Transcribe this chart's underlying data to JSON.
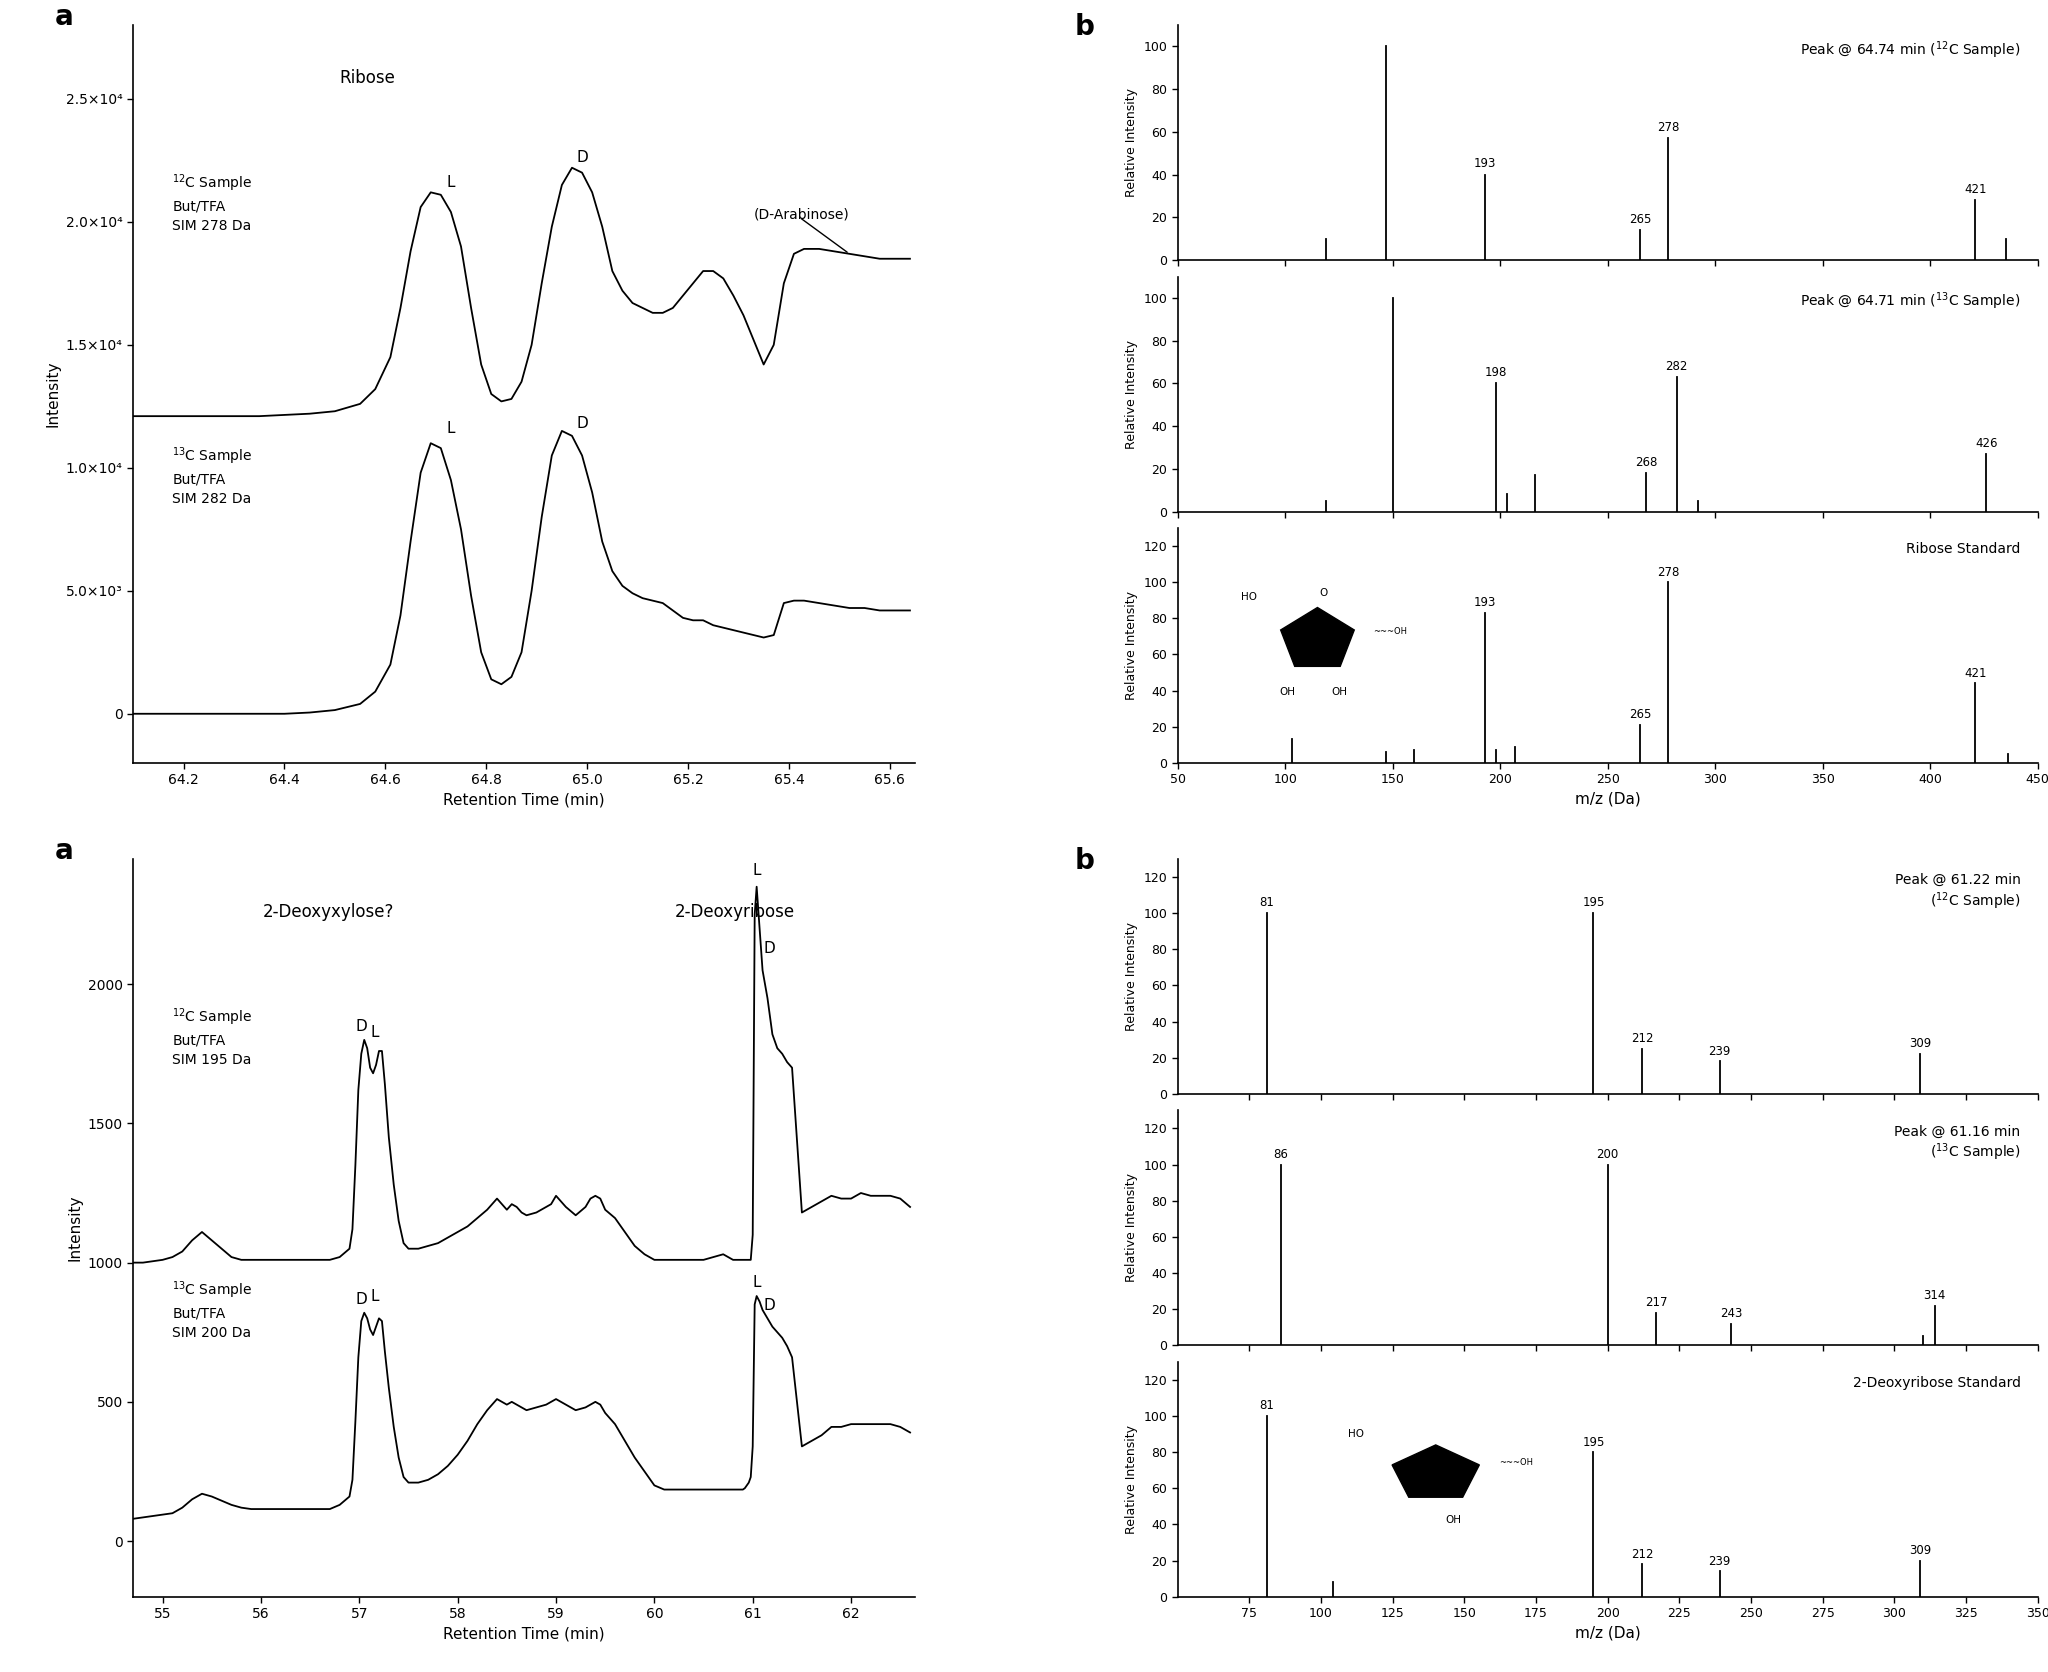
{
  "top_chrom": {
    "xlabel": "Retention Time (min)",
    "ylabel": "Intensity",
    "xlim": [
      64.1,
      65.65
    ],
    "ylim": [
      -2000,
      28000
    ],
    "yticks": [
      0,
      5000,
      10000,
      15000,
      20000,
      25000
    ],
    "ytick_labels": [
      "0",
      "5.0×10³",
      "1.0×10⁴",
      "1.5×10⁴",
      "2.0×10⁴",
      "2.5×10⁴"
    ],
    "xticks": [
      64.2,
      64.4,
      64.6,
      64.8,
      65.0,
      65.2,
      65.4,
      65.6
    ],
    "label_12C": "$^{12}$C Sample\nBut/TFA\nSIM 278 Da",
    "label_13C": "$^{13}$C Sample\nBut/TFA\nSIM 282 Da",
    "ribose_label": "Ribose",
    "arabinose_label": "(D-Arabinose)",
    "trace12C_x": [
      64.1,
      64.15,
      64.2,
      64.25,
      64.3,
      64.35,
      64.4,
      64.45,
      64.5,
      64.55,
      64.58,
      64.61,
      64.63,
      64.65,
      64.67,
      64.69,
      64.71,
      64.73,
      64.75,
      64.77,
      64.79,
      64.81,
      64.83,
      64.85,
      64.87,
      64.89,
      64.91,
      64.93,
      64.95,
      64.97,
      64.99,
      65.01,
      65.03,
      65.05,
      65.07,
      65.09,
      65.11,
      65.13,
      65.15,
      65.17,
      65.19,
      65.21,
      65.23,
      65.25,
      65.27,
      65.29,
      65.31,
      65.33,
      65.35,
      65.37,
      65.39,
      65.41,
      65.43,
      65.46,
      65.49,
      65.52,
      65.55,
      65.58,
      65.61,
      65.64
    ],
    "trace12C_y": [
      12100,
      12100,
      12100,
      12100,
      12100,
      12100,
      12150,
      12200,
      12300,
      12600,
      13200,
      14500,
      16500,
      18800,
      20600,
      21200,
      21100,
      20400,
      19000,
      16500,
      14200,
      13000,
      12700,
      12800,
      13500,
      15000,
      17500,
      19800,
      21500,
      22200,
      22000,
      21200,
      19800,
      18000,
      17200,
      16700,
      16500,
      16300,
      16300,
      16500,
      17000,
      17500,
      18000,
      18000,
      17700,
      17000,
      16200,
      15200,
      14200,
      15000,
      17500,
      18700,
      18900,
      18900,
      18800,
      18700,
      18600,
      18500,
      18500,
      18500
    ],
    "trace13C_x": [
      64.1,
      64.15,
      64.2,
      64.25,
      64.3,
      64.35,
      64.4,
      64.45,
      64.5,
      64.55,
      64.58,
      64.61,
      64.63,
      64.65,
      64.67,
      64.69,
      64.71,
      64.73,
      64.75,
      64.77,
      64.79,
      64.81,
      64.83,
      64.85,
      64.87,
      64.89,
      64.91,
      64.93,
      64.95,
      64.97,
      64.99,
      65.01,
      65.03,
      65.05,
      65.07,
      65.09,
      65.11,
      65.13,
      65.15,
      65.17,
      65.19,
      65.21,
      65.23,
      65.25,
      65.27,
      65.29,
      65.31,
      65.33,
      65.35,
      65.37,
      65.39,
      65.41,
      65.43,
      65.46,
      65.49,
      65.52,
      65.55,
      65.58,
      65.61,
      65.64
    ],
    "trace13C_y": [
      0,
      0,
      0,
      0,
      0,
      0,
      0,
      50,
      150,
      400,
      900,
      2000,
      4000,
      7000,
      9800,
      11000,
      10800,
      9500,
      7500,
      4800,
      2500,
      1400,
      1200,
      1500,
      2500,
      5000,
      8000,
      10500,
      11500,
      11300,
      10500,
      9000,
      7000,
      5800,
      5200,
      4900,
      4700,
      4600,
      4500,
      4200,
      3900,
      3800,
      3800,
      3600,
      3500,
      3400,
      3300,
      3200,
      3100,
      3200,
      4500,
      4600,
      4600,
      4500,
      4400,
      4300,
      4300,
      4200,
      4200,
      4200
    ]
  },
  "top_ms1": {
    "title_line1": "Peak @ 64.74 min (",
    "title_12C": "12",
    "title_line2": "C Sample)",
    "title_full": "Peak @ 64.74 min ($^{12}$C Sample)",
    "ylabel": "Relative Intensity",
    "xlim": [
      50,
      450
    ],
    "ylim": [
      0,
      110
    ],
    "yticks": [
      0,
      20,
      40,
      60,
      80,
      100
    ],
    "xticks": [
      50,
      100,
      150,
      200,
      250,
      300,
      350,
      400,
      450
    ],
    "peaks": [
      {
        "mz": 119,
        "intensity": 10,
        "label": false
      },
      {
        "mz": 147,
        "intensity": 100,
        "label": false
      },
      {
        "mz": 193,
        "intensity": 40,
        "label": true
      },
      {
        "mz": 265,
        "intensity": 14,
        "label": true
      },
      {
        "mz": 278,
        "intensity": 57,
        "label": true
      },
      {
        "mz": 421,
        "intensity": 28,
        "label": true
      },
      {
        "mz": 435,
        "intensity": 10,
        "label": false
      }
    ]
  },
  "top_ms2": {
    "title_full": "Peak @ 64.71 min ($^{13}$C Sample)",
    "ylabel": "Relative Intensity",
    "xlim": [
      50,
      450
    ],
    "ylim": [
      0,
      110
    ],
    "yticks": [
      0,
      20,
      40,
      60,
      80,
      100
    ],
    "xticks": [
      50,
      100,
      150,
      200,
      250,
      300,
      350,
      400,
      450
    ],
    "peaks": [
      {
        "mz": 119,
        "intensity": 5,
        "label": false
      },
      {
        "mz": 150,
        "intensity": 100,
        "label": false
      },
      {
        "mz": 198,
        "intensity": 60,
        "label": true
      },
      {
        "mz": 203,
        "intensity": 8,
        "label": false
      },
      {
        "mz": 216,
        "intensity": 17,
        "label": false
      },
      {
        "mz": 268,
        "intensity": 18,
        "label": true
      },
      {
        "mz": 282,
        "intensity": 63,
        "label": true
      },
      {
        "mz": 292,
        "intensity": 5,
        "label": false
      },
      {
        "mz": 426,
        "intensity": 27,
        "label": true
      }
    ]
  },
  "top_ms3": {
    "title_full": "Ribose Standard",
    "ylabel": "Relative Intensity",
    "xlabel": "m/z (Da)",
    "xlim": [
      50,
      450
    ],
    "ylim": [
      0,
      130
    ],
    "yticks": [
      0,
      20,
      40,
      60,
      80,
      100,
      120
    ],
    "xticks": [
      50,
      100,
      150,
      200,
      250,
      300,
      350,
      400,
      450
    ],
    "peaks": [
      {
        "mz": 103,
        "intensity": 13,
        "label": false
      },
      {
        "mz": 147,
        "intensity": 6,
        "label": false
      },
      {
        "mz": 160,
        "intensity": 7,
        "label": false
      },
      {
        "mz": 193,
        "intensity": 83,
        "label": true
      },
      {
        "mz": 198,
        "intensity": 7,
        "label": false
      },
      {
        "mz": 207,
        "intensity": 9,
        "label": false
      },
      {
        "mz": 265,
        "intensity": 21,
        "label": true
      },
      {
        "mz": 278,
        "intensity": 100,
        "label": true
      },
      {
        "mz": 421,
        "intensity": 44,
        "label": true
      },
      {
        "mz": 436,
        "intensity": 5,
        "label": false
      }
    ]
  },
  "bot_chrom": {
    "xlabel": "Retention Time (min)",
    "ylabel": "Intensity",
    "xlim": [
      54.7,
      62.65
    ],
    "ylim": [
      -200,
      2450
    ],
    "yticks": [
      0,
      500,
      1000,
      1500,
      2000
    ],
    "ytick_labels": [
      "0",
      "500",
      "1000",
      "1500",
      "2000"
    ],
    "xticks": [
      55,
      56,
      57,
      58,
      59,
      60,
      61,
      62
    ],
    "label_12C": "$^{12}$C Sample\nBut/TFA\nSIM 195 Da",
    "label_13C": "$^{13}$C Sample\nBut/TFA\nSIM 200 Da",
    "deoxyxylose_label": "2-Deoxyxylose?",
    "deoxyribose_label": "2-Deoxyribose",
    "trace12C_x": [
      54.7,
      54.8,
      54.9,
      55.0,
      55.1,
      55.2,
      55.3,
      55.4,
      55.5,
      55.6,
      55.7,
      55.8,
      55.9,
      56.0,
      56.1,
      56.2,
      56.3,
      56.4,
      56.5,
      56.6,
      56.7,
      56.8,
      56.9,
      56.93,
      56.96,
      56.99,
      57.02,
      57.05,
      57.08,
      57.11,
      57.14,
      57.17,
      57.2,
      57.23,
      57.26,
      57.3,
      57.35,
      57.4,
      57.45,
      57.5,
      57.55,
      57.6,
      57.7,
      57.8,
      57.9,
      58.0,
      58.1,
      58.2,
      58.3,
      58.35,
      58.4,
      58.45,
      58.5,
      58.55,
      58.6,
      58.65,
      58.7,
      58.8,
      58.9,
      58.95,
      59.0,
      59.05,
      59.1,
      59.2,
      59.3,
      59.35,
      59.4,
      59.45,
      59.5,
      59.6,
      59.7,
      59.8,
      59.9,
      60.0,
      60.1,
      60.2,
      60.3,
      60.4,
      60.5,
      60.6,
      60.7,
      60.8,
      60.9,
      60.92,
      60.94,
      60.96,
      60.98,
      61.0,
      61.02,
      61.04,
      61.07,
      61.1,
      61.15,
      61.2,
      61.25,
      61.3,
      61.35,
      61.4,
      61.5,
      61.6,
      61.7,
      61.8,
      61.9,
      62.0,
      62.1,
      62.2,
      62.3,
      62.4,
      62.5,
      62.6
    ],
    "trace12C_y": [
      1000,
      1000,
      1005,
      1010,
      1020,
      1040,
      1080,
      1110,
      1080,
      1050,
      1020,
      1010,
      1010,
      1010,
      1010,
      1010,
      1010,
      1010,
      1010,
      1010,
      1010,
      1020,
      1050,
      1120,
      1350,
      1620,
      1750,
      1800,
      1770,
      1700,
      1680,
      1710,
      1760,
      1760,
      1640,
      1450,
      1280,
      1150,
      1070,
      1050,
      1050,
      1050,
      1060,
      1070,
      1090,
      1110,
      1130,
      1160,
      1190,
      1210,
      1230,
      1210,
      1190,
      1210,
      1200,
      1180,
      1170,
      1180,
      1200,
      1210,
      1240,
      1220,
      1200,
      1170,
      1200,
      1230,
      1240,
      1230,
      1190,
      1160,
      1110,
      1060,
      1030,
      1010,
      1010,
      1010,
      1010,
      1010,
      1010,
      1020,
      1030,
      1010,
      1010,
      1010,
      1010,
      1010,
      1010,
      1100,
      2250,
      2350,
      2200,
      2050,
      1950,
      1820,
      1770,
      1750,
      1720,
      1700,
      1180,
      1200,
      1220,
      1240,
      1230,
      1230,
      1250,
      1240,
      1240,
      1240,
      1230,
      1200
    ],
    "trace13C_x": [
      54.7,
      54.8,
      54.9,
      55.0,
      55.1,
      55.2,
      55.3,
      55.4,
      55.5,
      55.6,
      55.7,
      55.8,
      55.9,
      56.0,
      56.1,
      56.2,
      56.3,
      56.4,
      56.5,
      56.6,
      56.7,
      56.8,
      56.9,
      56.93,
      56.96,
      56.99,
      57.02,
      57.05,
      57.08,
      57.11,
      57.14,
      57.17,
      57.2,
      57.23,
      57.26,
      57.3,
      57.35,
      57.4,
      57.45,
      57.5,
      57.55,
      57.6,
      57.7,
      57.8,
      57.9,
      58.0,
      58.1,
      58.2,
      58.3,
      58.35,
      58.4,
      58.45,
      58.5,
      58.55,
      58.6,
      58.65,
      58.7,
      58.8,
      58.9,
      58.95,
      59.0,
      59.05,
      59.1,
      59.2,
      59.3,
      59.35,
      59.4,
      59.45,
      59.5,
      59.6,
      59.7,
      59.8,
      59.9,
      60.0,
      60.1,
      60.2,
      60.3,
      60.4,
      60.5,
      60.6,
      60.7,
      60.8,
      60.9,
      60.92,
      60.94,
      60.96,
      60.98,
      61.0,
      61.02,
      61.04,
      61.07,
      61.1,
      61.15,
      61.2,
      61.25,
      61.3,
      61.35,
      61.4,
      61.5,
      61.6,
      61.7,
      61.8,
      61.9,
      62.0,
      62.1,
      62.2,
      62.3,
      62.4,
      62.5,
      62.6
    ],
    "trace13C_y": [
      80,
      85,
      90,
      95,
      100,
      120,
      150,
      170,
      160,
      145,
      130,
      120,
      115,
      115,
      115,
      115,
      115,
      115,
      115,
      115,
      115,
      130,
      160,
      220,
      430,
      660,
      790,
      820,
      800,
      760,
      740,
      770,
      800,
      790,
      680,
      550,
      410,
      300,
      230,
      210,
      210,
      210,
      220,
      240,
      270,
      310,
      360,
      420,
      470,
      490,
      510,
      500,
      490,
      500,
      490,
      480,
      470,
      480,
      490,
      500,
      510,
      500,
      490,
      470,
      480,
      490,
      500,
      490,
      460,
      420,
      360,
      300,
      250,
      200,
      185,
      185,
      185,
      185,
      185,
      185,
      185,
      185,
      185,
      190,
      200,
      210,
      230,
      340,
      850,
      880,
      860,
      830,
      800,
      770,
      750,
      730,
      700,
      660,
      340,
      360,
      380,
      410,
      410,
      420,
      420,
      420,
      420,
      420,
      410,
      390
    ]
  },
  "bot_ms1": {
    "title_full": "Peak @ 61.22 min\n($^{12}$C Sample)",
    "ylabel": "Relative Intensity",
    "xlim": [
      50,
      350
    ],
    "ylim": [
      0,
      130
    ],
    "yticks": [
      0,
      20,
      40,
      60,
      80,
      100,
      120
    ],
    "xticks": [
      75,
      100,
      125,
      150,
      175,
      200,
      225,
      250,
      275,
      300,
      325,
      350
    ],
    "peaks": [
      {
        "mz": 81,
        "intensity": 100,
        "label": true
      },
      {
        "mz": 195,
        "intensity": 100,
        "label": true
      },
      {
        "mz": 212,
        "intensity": 25,
        "label": true
      },
      {
        "mz": 239,
        "intensity": 18,
        "label": true
      },
      {
        "mz": 309,
        "intensity": 22,
        "label": true
      }
    ]
  },
  "bot_ms2": {
    "title_full": "Peak @ 61.16 min\n($^{13}$C Sample)",
    "ylabel": "Relative Intensity",
    "xlim": [
      50,
      350
    ],
    "ylim": [
      0,
      130
    ],
    "yticks": [
      0,
      20,
      40,
      60,
      80,
      100,
      120
    ],
    "xticks": [
      75,
      100,
      125,
      150,
      175,
      200,
      225,
      250,
      275,
      300,
      325,
      350
    ],
    "peaks": [
      {
        "mz": 86,
        "intensity": 100,
        "label": true
      },
      {
        "mz": 200,
        "intensity": 100,
        "label": true
      },
      {
        "mz": 217,
        "intensity": 18,
        "label": true
      },
      {
        "mz": 243,
        "intensity": 12,
        "label": true
      },
      {
        "mz": 310,
        "intensity": 5,
        "label": false
      },
      {
        "mz": 314,
        "intensity": 22,
        "label": true
      }
    ]
  },
  "bot_ms3": {
    "title_full": "2-Deoxyribose Standard",
    "ylabel": "Relative Intensity",
    "xlabel": "m/z (Da)",
    "xlim": [
      50,
      350
    ],
    "ylim": [
      0,
      130
    ],
    "yticks": [
      0,
      20,
      40,
      60,
      80,
      100,
      120
    ],
    "xticks": [
      75,
      100,
      125,
      150,
      175,
      200,
      225,
      250,
      275,
      300,
      325,
      350
    ],
    "peaks": [
      {
        "mz": 81,
        "intensity": 100,
        "label": true
      },
      {
        "mz": 104,
        "intensity": 8,
        "label": false
      },
      {
        "mz": 195,
        "intensity": 80,
        "label": true
      },
      {
        "mz": 212,
        "intensity": 18,
        "label": true
      },
      {
        "mz": 239,
        "intensity": 14,
        "label": true
      },
      {
        "mz": 309,
        "intensity": 20,
        "label": true
      }
    ]
  }
}
